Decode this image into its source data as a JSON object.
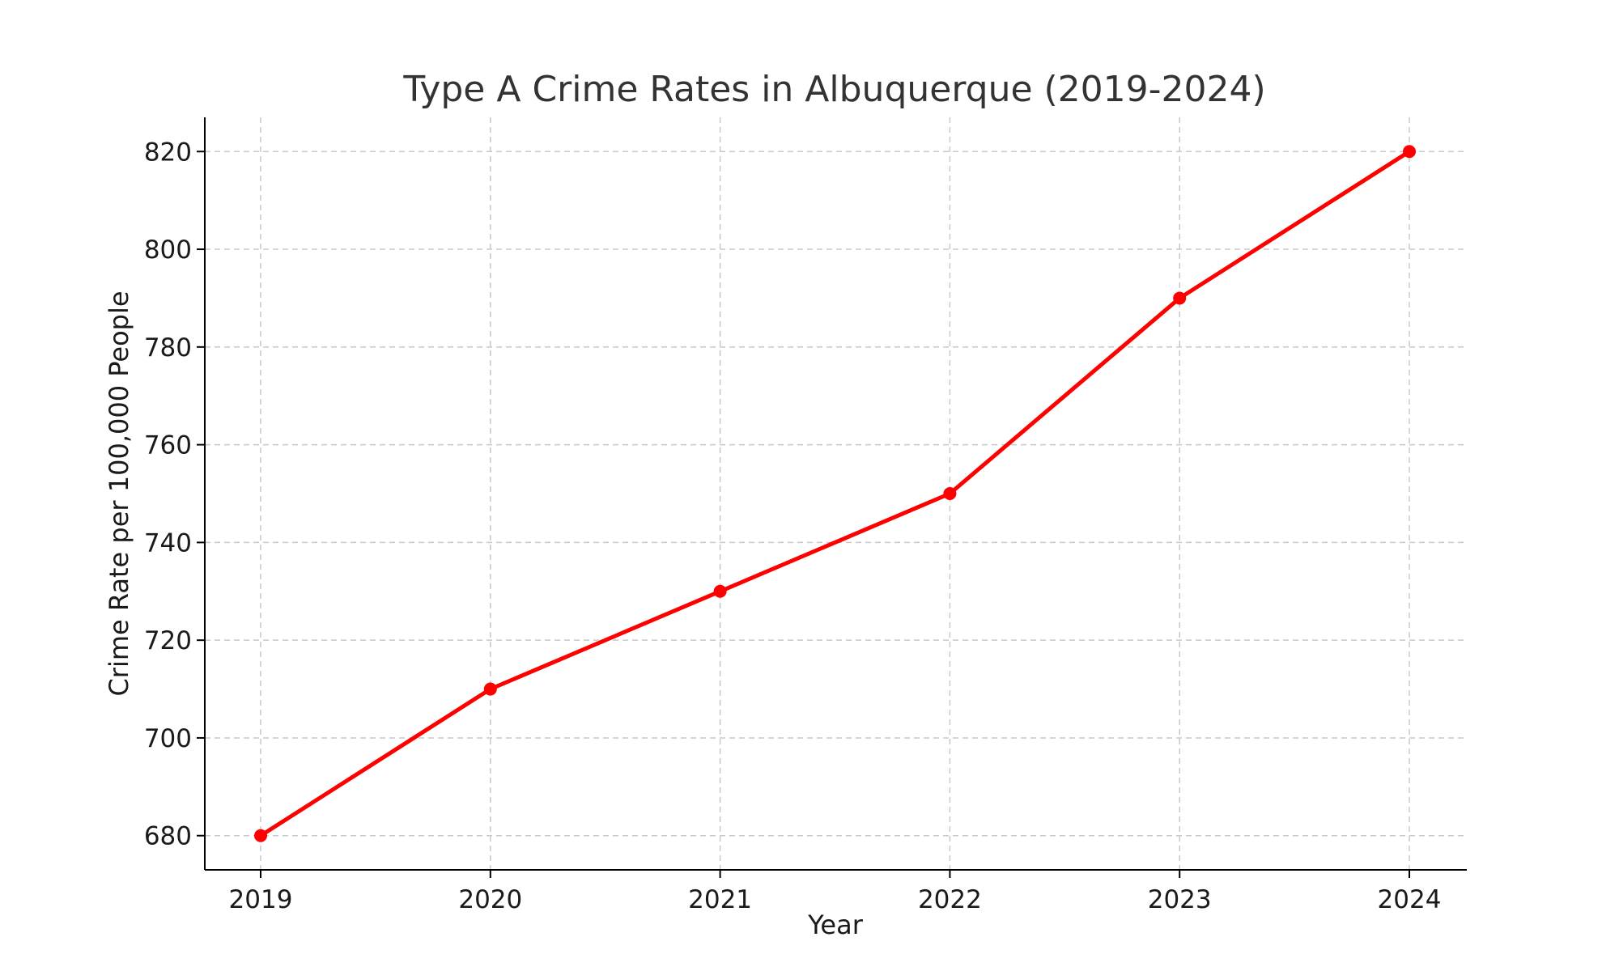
{
  "chart_data": {
    "type": "line",
    "title": "Type A Crime Rates in Albuquerque (2019-2024)",
    "xlabel": "Year",
    "ylabel": "Crime Rate per 100,000 People",
    "x": [
      "2019",
      "2020",
      "2021",
      "2022",
      "2023",
      "2024"
    ],
    "series": [
      {
        "values": [
          680,
          710,
          730,
          750,
          790,
          820
        ]
      }
    ],
    "yticks": [
      680,
      700,
      720,
      740,
      760,
      780,
      800,
      820
    ],
    "ylim": [
      673,
      827
    ],
    "grid": true,
    "line_color": "#ff0000",
    "marker": "circle"
  }
}
